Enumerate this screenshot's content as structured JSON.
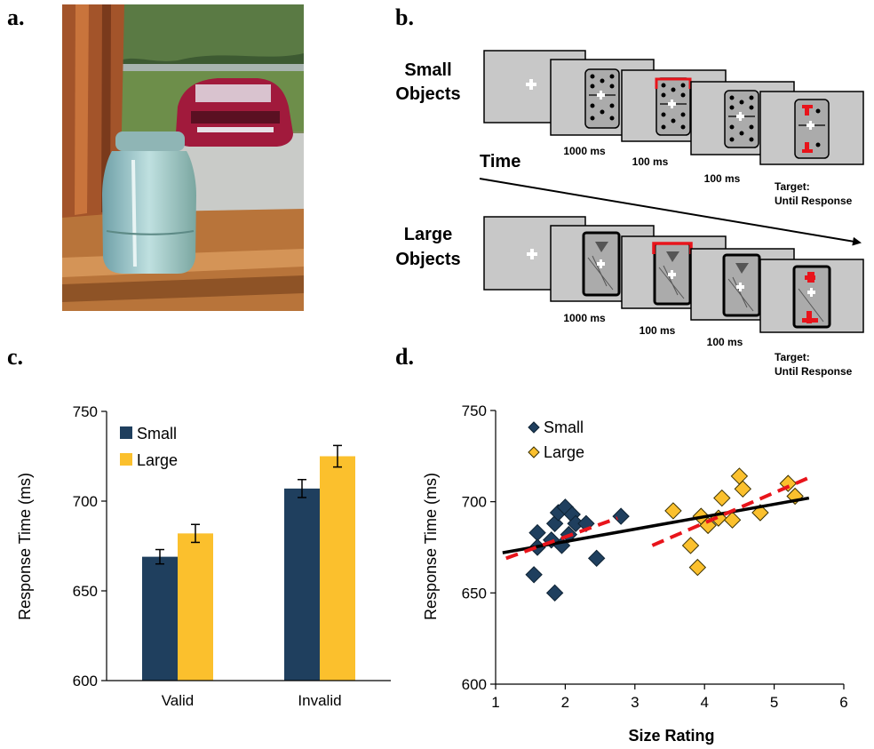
{
  "panels": {
    "a": "a.",
    "b": "b.",
    "c": "c.",
    "d": "d."
  },
  "trial_sequence": {
    "small_label_line1": "Small",
    "small_label_line2": "Objects",
    "large_label_line1": "Large",
    "large_label_line2": "Objects",
    "time_label": "Time",
    "durations": [
      "1000 ms",
      "100 ms",
      "100 ms"
    ],
    "target_line1": "Target:",
    "target_line2": "Until Response",
    "cue_color": "#e8141b",
    "frame_fill": "#c8c8c8"
  },
  "colors": {
    "small": "#1f3f5e",
    "large": "#fbc02d",
    "fit_all": "#000000",
    "fit_group": "#e8141b"
  },
  "chart_data": [
    {
      "type": "bar",
      "categories": [
        "Valid",
        "Invalid"
      ],
      "series": [
        {
          "name": "Small",
          "values": [
            669,
            707
          ],
          "errors": [
            4,
            5
          ]
        },
        {
          "name": "Large",
          "values": [
            682,
            725
          ],
          "errors": [
            5,
            6
          ]
        }
      ],
      "ylabel": "Response Time (ms)",
      "xlabel": "",
      "ylim": [
        600,
        750
      ],
      "yticks": [
        600,
        650,
        700,
        750
      ],
      "legend": "top-left",
      "grid": false
    },
    {
      "type": "scatter",
      "xlabel": "Size Rating",
      "ylabel": "Response Time (ms)",
      "xlim": [
        1,
        6
      ],
      "ylim": [
        600,
        750
      ],
      "xticks": [
        1,
        2,
        3,
        4,
        5,
        6
      ],
      "yticks": [
        600,
        650,
        700,
        750
      ],
      "legend": "top-left",
      "grid": false,
      "series": [
        {
          "name": "Small",
          "points": [
            [
              1.6,
              683
            ],
            [
              1.6,
              675
            ],
            [
              1.55,
              660
            ],
            [
              1.8,
              679
            ],
            [
              1.85,
              688
            ],
            [
              1.85,
              650
            ],
            [
              1.9,
              694
            ],
            [
              1.95,
              676
            ],
            [
              2.0,
              697
            ],
            [
              2.05,
              682
            ],
            [
              2.1,
              693
            ],
            [
              2.15,
              688
            ],
            [
              2.3,
              688
            ],
            [
              2.45,
              669
            ],
            [
              2.8,
              692
            ]
          ]
        },
        {
          "name": "Large",
          "points": [
            [
              3.55,
              695
            ],
            [
              3.8,
              676
            ],
            [
              3.9,
              664
            ],
            [
              3.95,
              692
            ],
            [
              4.05,
              687
            ],
            [
              4.2,
              691
            ],
            [
              4.25,
              702
            ],
            [
              4.4,
              690
            ],
            [
              4.5,
              714
            ],
            [
              4.55,
              707
            ],
            [
              4.8,
              694
            ],
            [
              5.2,
              710
            ],
            [
              5.3,
              703
            ]
          ]
        }
      ],
      "fit_lines": [
        {
          "kind": "all",
          "style": "solid",
          "from": [
            1.1,
            672
          ],
          "to": [
            5.5,
            702
          ]
        },
        {
          "kind": "small",
          "style": "dashed",
          "from": [
            1.15,
            669
          ],
          "to": [
            2.75,
            691
          ]
        },
        {
          "kind": "large",
          "style": "dashed",
          "from": [
            3.25,
            676
          ],
          "to": [
            5.55,
            714
          ]
        }
      ]
    }
  ]
}
